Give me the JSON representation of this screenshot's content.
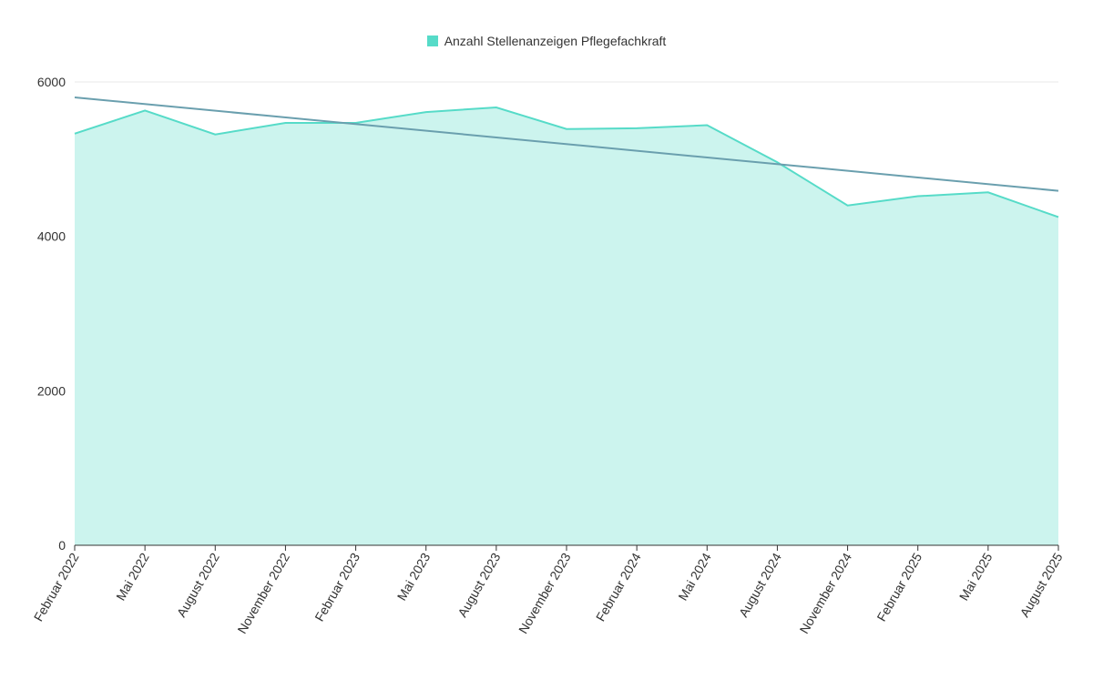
{
  "chart_data": {
    "type": "area",
    "categories": [
      "Februar 2022",
      "Mai 2022",
      "August 2022",
      "November 2022",
      "Februar 2023",
      "Mai 2023",
      "August 2023",
      "November 2023",
      "Februar 2024",
      "Mai 2024",
      "August 2024",
      "November 2024",
      "Februar 2025",
      "Mai 2025",
      "August 2025"
    ],
    "series": [
      {
        "name": "Anzahl Stellenanzeigen Pflegefachkraft",
        "values": [
          5330,
          5630,
          5320,
          5470,
          5470,
          5610,
          5670,
          5390,
          5400,
          5440,
          4960,
          4400,
          4520,
          4570,
          4250
        ],
        "color": "#56dbc8",
        "fill": "#ccf4ee"
      }
    ],
    "trendline": {
      "start": 5800,
      "end": 4590,
      "color": "#6a9fae"
    },
    "yticks": [
      0,
      2000,
      4000,
      6000
    ],
    "ylim": [
      0,
      6000
    ],
    "grid": true,
    "legend_position": "top-center",
    "title": "",
    "xlabel": "",
    "ylabel": ""
  }
}
